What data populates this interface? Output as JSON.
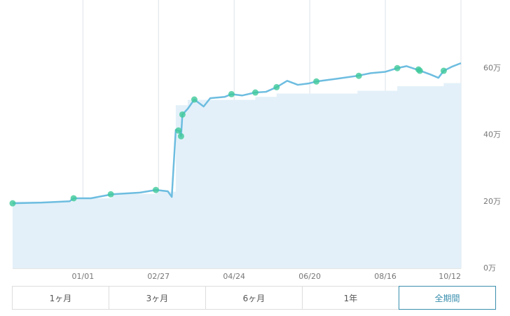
{
  "chart_data": {
    "type": "line",
    "xlim": [
      0,
      338
    ],
    "ylim": [
      0,
      80
    ],
    "grid": "x",
    "xticks": [
      {
        "value": 53,
        "label": "01/01"
      },
      {
        "value": 110,
        "label": "02/27"
      },
      {
        "value": 167,
        "label": "04/24"
      },
      {
        "value": 224,
        "label": "06/20"
      },
      {
        "value": 281,
        "label": "08/16"
      },
      {
        "value": 338,
        "label": "10/12"
      }
    ],
    "yticks": [
      {
        "value": 0,
        "label": "0万"
      },
      {
        "value": 20,
        "label": "20万"
      },
      {
        "value": 40,
        "label": "40万"
      },
      {
        "value": 60,
        "label": "60万"
      }
    ],
    "series": [
      {
        "style": "area",
        "color": "#e3f0f9",
        "x": [
          0,
          46,
          46,
          75,
          75,
          108,
          108,
          123,
          123,
          132,
          132,
          183,
          183,
          199,
          199,
          260,
          260,
          290,
          290,
          325,
          325,
          338
        ],
        "values": [
          20,
          20,
          21,
          21,
          22.3,
          22.3,
          23,
          23,
          48.9,
          48.9,
          50.5,
          50.5,
          51.4,
          51.4,
          52.4,
          52.4,
          53.2,
          53.2,
          54.6,
          54.6,
          55.5,
          55.5
        ]
      },
      {
        "style": "line",
        "color": "#6dbde0",
        "x": [
          0,
          22,
          43,
          46,
          59,
          75,
          96,
          108,
          117,
          120,
          123,
          126,
          127,
          128,
          132,
          137,
          144,
          149,
          160,
          165,
          173,
          183,
          191,
          199,
          207,
          215,
          223,
          229,
          244,
          260,
          270,
          281,
          290,
          297,
          306,
          315,
          321,
          325,
          331,
          338
        ],
        "values": [
          19.5,
          19.7,
          20.1,
          21,
          21,
          22.2,
          22.7,
          23.5,
          23.1,
          21.4,
          41.5,
          41.1,
          39.6,
          46.1,
          47.8,
          50.6,
          48.5,
          51,
          51.4,
          52.2,
          51.8,
          52.7,
          52.9,
          54.3,
          56.2,
          55,
          55.4,
          56,
          56.8,
          57.7,
          58.5,
          58.9,
          60,
          60.6,
          59.4,
          58.1,
          57.1,
          59.2,
          60.4,
          61.5
        ]
      },
      {
        "style": "points",
        "color": "#3ec99a",
        "x": [
          0,
          46,
          74,
          108,
          125,
          127,
          128,
          137,
          165,
          183,
          199,
          229,
          261,
          290,
          306,
          307,
          325
        ],
        "values": [
          19.5,
          21,
          22.2,
          23.5,
          41.3,
          39.6,
          46.1,
          50.6,
          52.2,
          52.7,
          54.3,
          56,
          57.7,
          60,
          59.6,
          59.2,
          59.2
        ]
      }
    ]
  },
  "buttons": {
    "labels": [
      "1ヶ月",
      "3ヶ月",
      "6ヶ月",
      "1年",
      "全期間"
    ],
    "selected": 4
  }
}
